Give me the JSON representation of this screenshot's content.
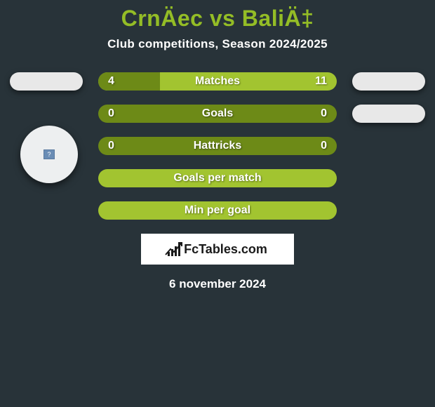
{
  "title": "CrnÄec vs BaliÄ‡",
  "subtitle": "Club competitions, Season 2024/2025",
  "colors": {
    "page_bg": "#283339",
    "accent_title": "#94bd26",
    "bar_dark": "#6d8a17",
    "bar_light": "#a2c430",
    "text_white": "#ffffff",
    "oval_bg": "#e8e8e8",
    "circle_bg": "#edeff0",
    "logo_bg": "#ffffff",
    "logo_fg": "#1a1a1a"
  },
  "rows": [
    {
      "label": "Matches",
      "left": "4",
      "right": "11",
      "type": "split",
      "left_pct": 26,
      "show_left_oval": true,
      "show_right_oval": true,
      "show_left_circle": false
    },
    {
      "label": "Goals",
      "left": "0",
      "right": "0",
      "type": "flat-dark",
      "left_pct": 0,
      "show_left_oval": false,
      "show_right_oval": true,
      "show_left_circle": false
    },
    {
      "label": "Hattricks",
      "left": "0",
      "right": "0",
      "type": "flat-dark",
      "left_pct": 0,
      "show_left_oval": false,
      "show_right_oval": false,
      "show_left_circle": false
    },
    {
      "label": "Goals per match",
      "left": "",
      "right": "",
      "type": "flat-light",
      "left_pct": 0,
      "show_left_oval": false,
      "show_right_oval": false,
      "show_left_circle": false
    },
    {
      "label": "Min per goal",
      "left": "",
      "right": "",
      "type": "flat-light",
      "left_pct": 0,
      "show_left_oval": false,
      "show_right_oval": false,
      "show_left_circle": false
    }
  ],
  "logo_text": "FcTables.com",
  "footer_date": "6 november 2024"
}
